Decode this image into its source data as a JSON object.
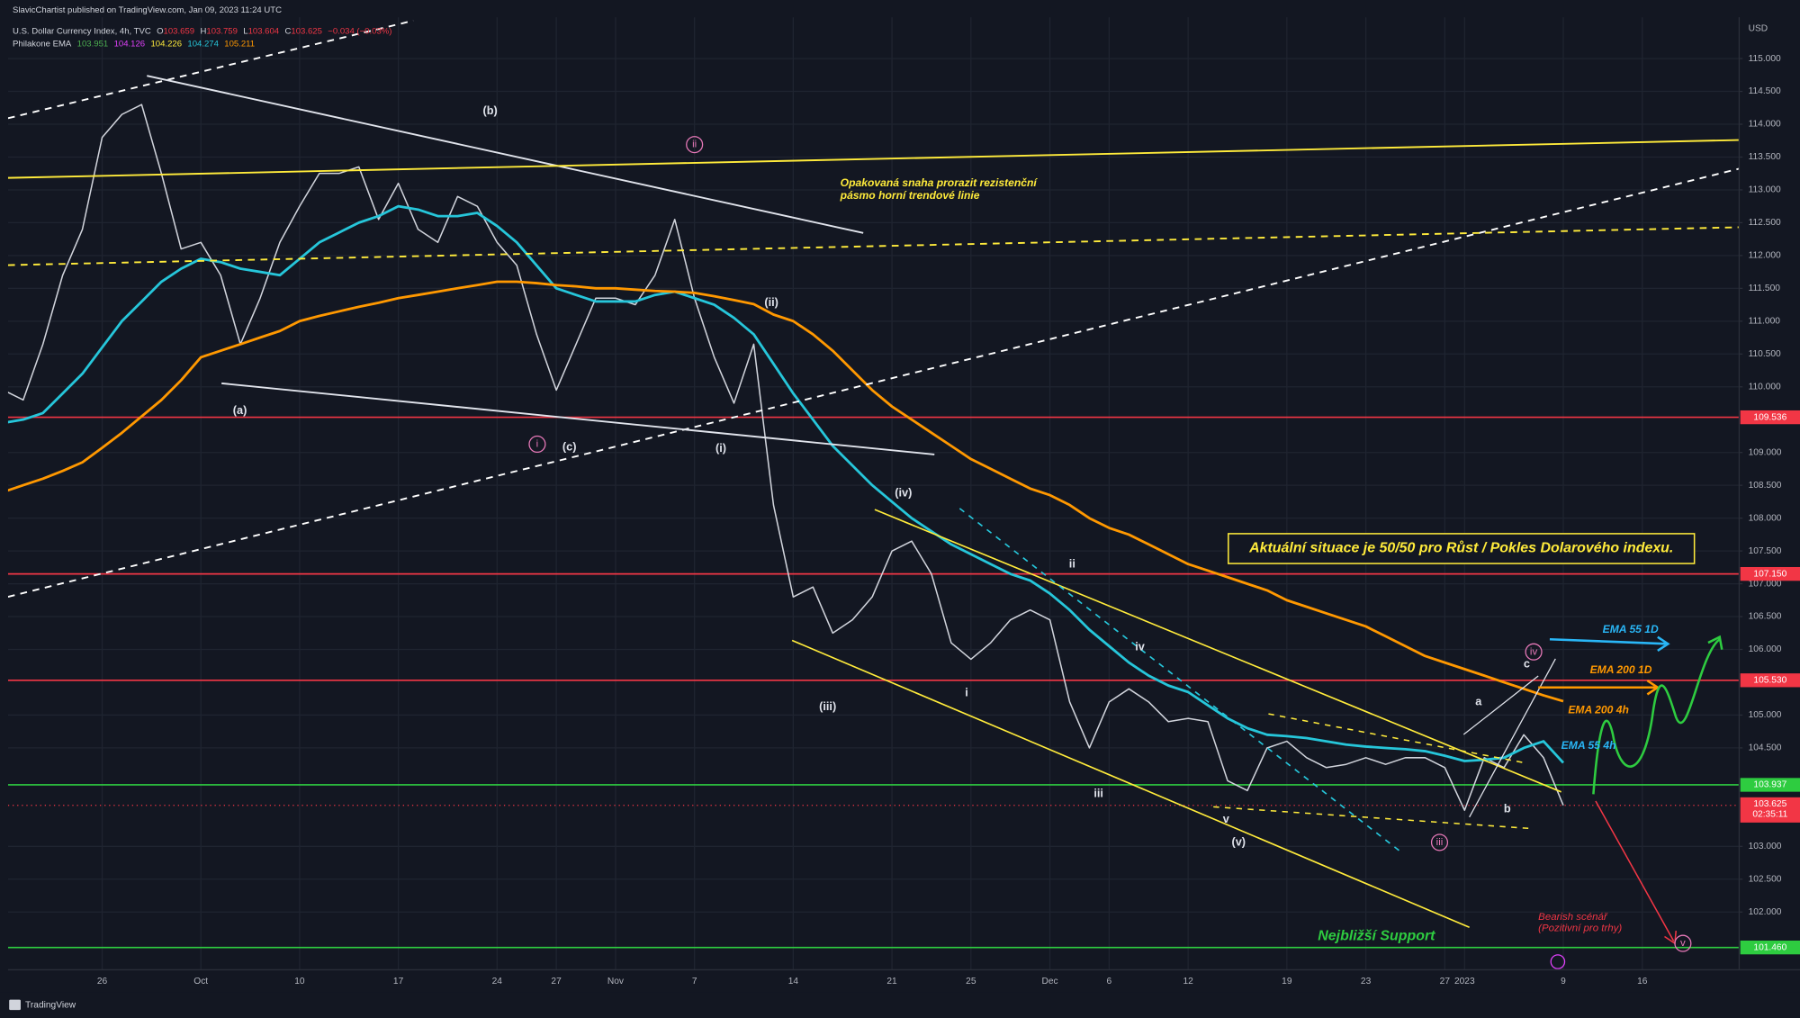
{
  "header": {
    "publisher": "SlavicChartist published on TradingView.com, Jan 09, 2023 11:24 UTC",
    "ohlc": [
      [
        "O",
        "103.659"
      ],
      [
        "H",
        "103.759"
      ],
      [
        "L",
        "103.604"
      ],
      [
        "C",
        "103.625"
      ]
    ],
    "change": "−0.034 (−0.03%)",
    "indicator": "Philakone EMA",
    "indicator_values": [
      {
        "text": "103.951",
        "color": "#4caf50"
      },
      {
        "text": "104.126",
        "color": "#e040fb"
      },
      {
        "text": "104.226",
        "color": "#ffeb3b"
      },
      {
        "text": "104.274",
        "color": "#26c6da"
      },
      {
        "text": "105.211",
        "color": "#ff9800"
      }
    ],
    "currency": "USD"
  },
  "chart_data": {
    "type": "line",
    "categories": [
      null,
      null,
      null,
      null,
      null,
      "26",
      null,
      null,
      null,
      null,
      "Oct",
      null,
      null,
      null,
      null,
      "10",
      null,
      null,
      null,
      null,
      "17",
      null,
      null,
      null,
      null,
      "24",
      null,
      null,
      "27",
      null,
      null,
      "Nov",
      null,
      null,
      null,
      "7",
      null,
      null,
      null,
      null,
      "14",
      null,
      null,
      null,
      null,
      "21",
      null,
      null,
      null,
      "25",
      null,
      null,
      null,
      "Dec",
      null,
      null,
      "6",
      null,
      null,
      null,
      "12",
      null,
      null,
      null,
      null,
      "19",
      null,
      null,
      null,
      "23",
      null,
      null,
      null,
      "27",
      "2023",
      null,
      null,
      null,
      null,
      "9",
      null,
      null,
      null,
      "16",
      null,
      null,
      null,
      null
    ],
    "series": [
      {
        "name": "U.S. Dollar Currency Index, 4h, TVC",
        "color": "#d1d4dc",
        "width": 1.2,
        "values": [
          109.95,
          109.8,
          110.65,
          111.7,
          112.4,
          113.8,
          114.15,
          114.3,
          113.25,
          112.1,
          112.2,
          111.7,
          110.65,
          111.35,
          112.2,
          112.75,
          113.25,
          113.25,
          113.35,
          112.55,
          113.1,
          112.4,
          112.2,
          112.9,
          112.75,
          112.2,
          111.85,
          110.8,
          109.95,
          110.65,
          111.35,
          111.35,
          111.25,
          111.7,
          112.55,
          111.35,
          110.45,
          109.75,
          110.65,
          108.2,
          106.8,
          106.95,
          106.25,
          106.45,
          106.8,
          107.5,
          107.65,
          107.15,
          106.1,
          105.85,
          106.1,
          106.45,
          106.6,
          106.45,
          105.2,
          104.5,
          105.2,
          105.4,
          105.2,
          104.9,
          104.95,
          104.9,
          104.0,
          103.85,
          104.5,
          104.6,
          104.35,
          104.2,
          104.25,
          104.35,
          104.25,
          104.35,
          104.35,
          104.2,
          103.55,
          104.35,
          104.2,
          104.7,
          104.35,
          103.625,
          null,
          null,
          null,
          null,
          null,
          null,
          null,
          null
        ]
      },
      {
        "name": "EMA 55 4h",
        "color": "#26c6da",
        "width": 2.2,
        "values": [
          109.45,
          109.5,
          109.6,
          109.9,
          110.2,
          110.6,
          111.0,
          111.3,
          111.6,
          111.8,
          111.95,
          111.9,
          111.8,
          111.75,
          111.7,
          111.95,
          112.2,
          112.35,
          112.5,
          112.6,
          112.75,
          112.7,
          112.6,
          112.6,
          112.65,
          112.45,
          112.2,
          111.85,
          111.5,
          111.4,
          111.3,
          111.3,
          111.3,
          111.4,
          111.45,
          111.35,
          111.25,
          111.05,
          110.8,
          110.35,
          109.9,
          109.5,
          109.1,
          108.8,
          108.5,
          108.25,
          108.0,
          107.8,
          107.6,
          107.45,
          107.3,
          107.15,
          107.05,
          106.85,
          106.6,
          106.3,
          106.05,
          105.8,
          105.6,
          105.45,
          105.35,
          105.15,
          104.95,
          104.8,
          104.7,
          104.68,
          104.65,
          104.6,
          104.55,
          104.52,
          104.5,
          104.48,
          104.45,
          104.38,
          104.3,
          104.32,
          104.35,
          104.5,
          104.6,
          104.274,
          null,
          null,
          null,
          null,
          null,
          null,
          null,
          null
        ]
      },
      {
        "name": "EMA 200 4h",
        "color": "#ff9800",
        "width": 2.2,
        "values": [
          108.4,
          108.5,
          108.6,
          108.72,
          108.85,
          109.07,
          109.3,
          109.55,
          109.8,
          110.1,
          110.45,
          110.55,
          110.65,
          110.75,
          110.85,
          111.0,
          111.08,
          111.15,
          111.22,
          111.28,
          111.35,
          111.4,
          111.45,
          111.5,
          111.55,
          111.6,
          111.6,
          111.58,
          111.55,
          111.53,
          111.5,
          111.5,
          111.48,
          111.46,
          111.45,
          111.43,
          111.38,
          111.32,
          111.26,
          111.1,
          111.0,
          110.8,
          110.55,
          110.25,
          109.95,
          109.7,
          109.5,
          109.3,
          109.1,
          108.9,
          108.75,
          108.6,
          108.45,
          108.35,
          108.2,
          108.0,
          107.85,
          107.75,
          107.6,
          107.45,
          107.3,
          107.2,
          107.1,
          107.0,
          106.9,
          106.75,
          106.65,
          106.55,
          106.45,
          106.35,
          106.2,
          106.05,
          105.9,
          105.8,
          105.7,
          105.6,
          105.5,
          105.4,
          105.3,
          105.211,
          null,
          null,
          null,
          null,
          null,
          null,
          null,
          null
        ]
      }
    ],
    "ylim": [
      101.12,
      115.63
    ],
    "yticks": [
      {
        "value": 102,
        "label": "102.000"
      },
      {
        "value": 102.5,
        "label": "102.500"
      },
      {
        "value": 103,
        "label": "103.000"
      },
      {
        "value": 104.5,
        "label": "104.500"
      },
      {
        "value": 105,
        "label": "105.000"
      },
      {
        "value": 106,
        "label": "106.000"
      },
      {
        "value": 106.5,
        "label": "106.500"
      },
      {
        "value": 107,
        "label": "107.000"
      },
      {
        "value": 107.5,
        "label": "107.500"
      },
      {
        "value": 108,
        "label": "108.000"
      },
      {
        "value": 108.5,
        "label": "108.500"
      },
      {
        "value": 109,
        "label": "109.000"
      },
      {
        "value": 110,
        "label": "110.000"
      },
      {
        "value": 110.5,
        "label": "110.500"
      },
      {
        "value": 111,
        "label": "111.000"
      },
      {
        "value": 111.5,
        "label": "111.500"
      },
      {
        "value": 112,
        "label": "112.000"
      },
      {
        "value": 112.5,
        "label": "112.500"
      },
      {
        "value": 113,
        "label": "113.000"
      },
      {
        "value": 113.5,
        "label": "113.500"
      },
      {
        "value": 114,
        "label": "114.000"
      },
      {
        "value": 114.5,
        "label": "114.500"
      },
      {
        "value": 115,
        "label": "115.000"
      }
    ],
    "grid": true,
    "levels": [
      {
        "value": 109.536,
        "label": "109.536",
        "color": "#f23645"
      },
      {
        "value": 107.15,
        "label": "107.150",
        "color": "#f23645"
      },
      {
        "value": 105.53,
        "label": "105.530",
        "color": "#f23645"
      },
      {
        "value": 103.937,
        "label": "103.937",
        "color": "#2ecc40"
      },
      {
        "value": 101.46,
        "label": "101.460",
        "color": "#2ecc40"
      }
    ],
    "price_label": {
      "value": 103.625,
      "label": "103.625",
      "countdown": "02:35:11",
      "color": "#f23645"
    }
  },
  "annotations": {
    "waves": [
      "(a)",
      "(b)",
      "(c)",
      "(i)",
      "(ii)",
      "(iii)",
      "(iv)",
      "(v)",
      "i",
      "ii",
      "iii",
      "iv",
      "v",
      "a",
      "b",
      "c"
    ],
    "circled": [
      "i",
      "ii",
      "iii",
      "iv",
      "v"
    ],
    "note": [
      "Opakovaná snaha prorazit rezistenční",
      "pásmo horní trendové linie"
    ],
    "box": "Aktuální situace je 50/50 pro Růst / Pokles Dolarového indexu.",
    "ema_1d": [
      "EMA 55 1D",
      "EMA 200 1D"
    ],
    "support": "Nejbližší Support",
    "bearish": [
      "Bearish scénář",
      "(Pozitivní pro trhy)"
    ]
  },
  "footer": "TradingView"
}
